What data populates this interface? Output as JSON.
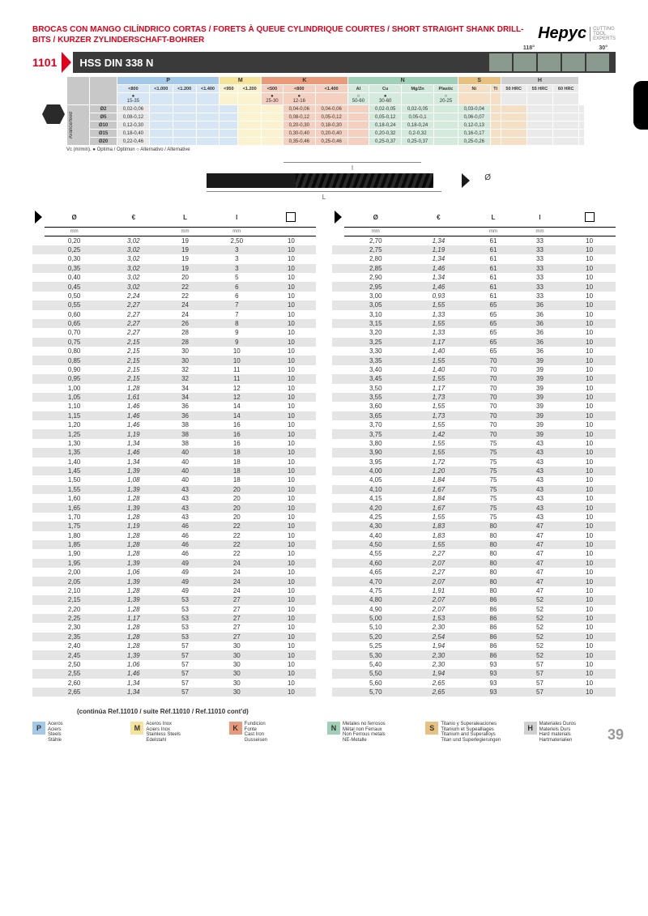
{
  "header_title": "BROCAS CON MANGO CILÍNDRICO CORTAS / FORETS À QUEUE CYLINDRIQUE COURTES / SHORT STRAIGHT SHANK DRILL-BITS / KURZER ZYLINDERSCHAFT-BOHRER",
  "brand_name": "Hepyc",
  "brand_tag": "CUTTING\nTOOL\nEXPERTS",
  "product_code": "1101",
  "product_name": "HSS DIN 338 N",
  "angle1": "118°",
  "angle2": "30°",
  "feed_groups": [
    "P",
    "M",
    "K",
    "N",
    "S",
    "H"
  ],
  "feed_group_colors": {
    "P": "#a4c8e8",
    "M": "#f6e39a",
    "K": "#e89a7a",
    "N": "#a0d0b8",
    "S": "#e8c080",
    "H": "#d0d0d0"
  },
  "feed_sub_P": [
    "<800",
    "<1.000",
    "<1.200",
    "<1.400"
  ],
  "feed_sub_M": [
    "<950",
    "<1.200"
  ],
  "feed_sub_K": [
    "<500",
    "<800",
    "<1.400"
  ],
  "feed_sub_N": [
    "Al",
    "Cu",
    "Mg/Zn",
    "Plastic"
  ],
  "feed_sub_S": [
    "Ni",
    "Ti"
  ],
  "feed_sub_H": [
    "50 HRC",
    "55 HRC",
    "60 HRC"
  ],
  "feed_vc_row": [
    "15-35",
    "",
    "",
    "",
    "",
    "",
    "25-30",
    "12-16",
    "",
    "50-60",
    "30-60",
    "",
    "20-25",
    "",
    "",
    "",
    "",
    ""
  ],
  "feed_side_label": "Avance/feed",
  "feed_rows": [
    {
      "d": "Ø2",
      "av": "0,02-0,06",
      "k": [
        "0,04-0,06",
        "0,04-0,06",
        ""
      ],
      "n": [
        "0,02-0,05",
        "0,02-0,05",
        "",
        "0,03-0,04"
      ]
    },
    {
      "d": "Ø5",
      "av": "0,08-0,12",
      "k": [
        "0,08-0,12",
        "0,05-0,12",
        ""
      ],
      "n": [
        "0,05-0,12",
        "0,05-0,1",
        "",
        "0,06-0,07"
      ]
    },
    {
      "d": "Ø10",
      "av": "0,12-0,30",
      "k": [
        "0,20-0,30",
        "0,18-0,30",
        ""
      ],
      "n": [
        "0,18-0,24",
        "0,18-0,24",
        "",
        "0,12-0,13"
      ]
    },
    {
      "d": "Ø15",
      "av": "0,18-0,40",
      "k": [
        "0,30-0,40",
        "0,20-0,40",
        ""
      ],
      "n": [
        "0,20-0,32",
        "0,2-0,32",
        "",
        "0,16-0,17"
      ]
    },
    {
      "d": "Ø20",
      "av": "0,22-0,46",
      "k": [
        "0,35-0,46",
        "0,25-0,46",
        ""
      ],
      "n": [
        "0,25-0,37",
        "0,25-0,37",
        "",
        "0,25-0,26"
      ]
    }
  ],
  "feed_footnote": "Vc (m/min). ● Optima / Optimun ○ Alternativo / Alternative",
  "diagram_labels": {
    "l": "l",
    "L": "L",
    "d": "Ø"
  },
  "table_headers": {
    "d": "Ø",
    "d_unit": "mm",
    "eur": "€",
    "L": "L",
    "L_unit": "mm",
    "l": "l",
    "l_unit": "mm",
    "pack": ""
  },
  "left_rows": [
    [
      "0,20",
      "3,02",
      "19",
      "2,50",
      "10"
    ],
    [
      "0,25",
      "3,02",
      "19",
      "3",
      "10"
    ],
    [
      "0,30",
      "3,02",
      "19",
      "3",
      "10"
    ],
    [
      "0,35",
      "3,02",
      "19",
      "3",
      "10"
    ],
    [
      "0,40",
      "3,02",
      "20",
      "5",
      "10"
    ],
    [
      "0,45",
      "3,02",
      "22",
      "6",
      "10"
    ],
    [
      "0,50",
      "2,24",
      "22",
      "6",
      "10"
    ],
    [
      "0,55",
      "2,27",
      "24",
      "7",
      "10"
    ],
    [
      "0,60",
      "2,27",
      "24",
      "7",
      "10"
    ],
    [
      "0,65",
      "2,27",
      "26",
      "8",
      "10"
    ],
    [
      "0,70",
      "2,27",
      "28",
      "9",
      "10"
    ],
    [
      "0,75",
      "2,15",
      "28",
      "9",
      "10"
    ],
    [
      "0,80",
      "2,15",
      "30",
      "10",
      "10"
    ],
    [
      "0,85",
      "2,15",
      "30",
      "10",
      "10"
    ],
    [
      "0,90",
      "2,15",
      "32",
      "11",
      "10"
    ],
    [
      "0,95",
      "2,15",
      "32",
      "11",
      "10"
    ],
    [
      "1,00",
      "1,28",
      "34",
      "12",
      "10"
    ],
    [
      "1,05",
      "1,61",
      "34",
      "12",
      "10"
    ],
    [
      "1,10",
      "1,46",
      "36",
      "14",
      "10"
    ],
    [
      "1,15",
      "1,46",
      "36",
      "14",
      "10"
    ],
    [
      "1,20",
      "1,46",
      "38",
      "16",
      "10"
    ],
    [
      "1,25",
      "1,19",
      "38",
      "16",
      "10"
    ],
    [
      "1,30",
      "1,34",
      "38",
      "16",
      "10"
    ],
    [
      "1,35",
      "1,46",
      "40",
      "18",
      "10"
    ],
    [
      "1,40",
      "1,34",
      "40",
      "18",
      "10"
    ],
    [
      "1,45",
      "1,39",
      "40",
      "18",
      "10"
    ],
    [
      "1,50",
      "1,08",
      "40",
      "18",
      "10"
    ],
    [
      "1,55",
      "1,39",
      "43",
      "20",
      "10"
    ],
    [
      "1,60",
      "1,28",
      "43",
      "20",
      "10"
    ],
    [
      "1,65",
      "1,39",
      "43",
      "20",
      "10"
    ],
    [
      "1,70",
      "1,28",
      "43",
      "20",
      "10"
    ],
    [
      "1,75",
      "1,19",
      "46",
      "22",
      "10"
    ],
    [
      "1,80",
      "1,28",
      "46",
      "22",
      "10"
    ],
    [
      "1,85",
      "1,28",
      "46",
      "22",
      "10"
    ],
    [
      "1,90",
      "1,28",
      "46",
      "22",
      "10"
    ],
    [
      "1,95",
      "1,39",
      "49",
      "24",
      "10"
    ],
    [
      "2,00",
      "1,06",
      "49",
      "24",
      "10"
    ],
    [
      "2,05",
      "1,39",
      "49",
      "24",
      "10"
    ],
    [
      "2,10",
      "1,28",
      "49",
      "24",
      "10"
    ],
    [
      "2,15",
      "1,39",
      "53",
      "27",
      "10"
    ],
    [
      "2,20",
      "1,28",
      "53",
      "27",
      "10"
    ],
    [
      "2,25",
      "1,17",
      "53",
      "27",
      "10"
    ],
    [
      "2,30",
      "1,28",
      "53",
      "27",
      "10"
    ],
    [
      "2,35",
      "1,28",
      "53",
      "27",
      "10"
    ],
    [
      "2,40",
      "1,28",
      "57",
      "30",
      "10"
    ],
    [
      "2,45",
      "1,39",
      "57",
      "30",
      "10"
    ],
    [
      "2,50",
      "1,06",
      "57",
      "30",
      "10"
    ],
    [
      "2,55",
      "1,46",
      "57",
      "30",
      "10"
    ],
    [
      "2,60",
      "1,34",
      "57",
      "30",
      "10"
    ],
    [
      "2,65",
      "1,34",
      "57",
      "30",
      "10"
    ]
  ],
  "right_rows": [
    [
      "2,70",
      "1,34",
      "61",
      "33",
      "10"
    ],
    [
      "2,75",
      "1,19",
      "61",
      "33",
      "10"
    ],
    [
      "2,80",
      "1,34",
      "61",
      "33",
      "10"
    ],
    [
      "2,85",
      "1,46",
      "61",
      "33",
      "10"
    ],
    [
      "2,90",
      "1,34",
      "61",
      "33",
      "10"
    ],
    [
      "2,95",
      "1,46",
      "61",
      "33",
      "10"
    ],
    [
      "3,00",
      "0,93",
      "61",
      "33",
      "10"
    ],
    [
      "3,05",
      "1,55",
      "65",
      "36",
      "10"
    ],
    [
      "3,10",
      "1,33",
      "65",
      "36",
      "10"
    ],
    [
      "3,15",
      "1,55",
      "65",
      "36",
      "10"
    ],
    [
      "3,20",
      "1,33",
      "65",
      "36",
      "10"
    ],
    [
      "3,25",
      "1,17",
      "65",
      "36",
      "10"
    ],
    [
      "3,30",
      "1,40",
      "65",
      "36",
      "10"
    ],
    [
      "3,35",
      "1,55",
      "70",
      "39",
      "10"
    ],
    [
      "3,40",
      "1,40",
      "70",
      "39",
      "10"
    ],
    [
      "3,45",
      "1,55",
      "70",
      "39",
      "10"
    ],
    [
      "3,50",
      "1,17",
      "70",
      "39",
      "10"
    ],
    [
      "3,55",
      "1,73",
      "70",
      "39",
      "10"
    ],
    [
      "3,60",
      "1,55",
      "70",
      "39",
      "10"
    ],
    [
      "3,65",
      "1,73",
      "70",
      "39",
      "10"
    ],
    [
      "3,70",
      "1,55",
      "70",
      "39",
      "10"
    ],
    [
      "3,75",
      "1,42",
      "70",
      "39",
      "10"
    ],
    [
      "3,80",
      "1,55",
      "75",
      "43",
      "10"
    ],
    [
      "3,90",
      "1,55",
      "75",
      "43",
      "10"
    ],
    [
      "3,95",
      "1,72",
      "75",
      "43",
      "10"
    ],
    [
      "4,00",
      "1,20",
      "75",
      "43",
      "10"
    ],
    [
      "4,05",
      "1,84",
      "75",
      "43",
      "10"
    ],
    [
      "4,10",
      "1,67",
      "75",
      "43",
      "10"
    ],
    [
      "4,15",
      "1,84",
      "75",
      "43",
      "10"
    ],
    [
      "4,20",
      "1,67",
      "75",
      "43",
      "10"
    ],
    [
      "4,25",
      "1,55",
      "75",
      "43",
      "10"
    ],
    [
      "4,30",
      "1,83",
      "80",
      "47",
      "10"
    ],
    [
      "4,40",
      "1,83",
      "80",
      "47",
      "10"
    ],
    [
      "4,50",
      "1,55",
      "80",
      "47",
      "10"
    ],
    [
      "4,55",
      "2,27",
      "80",
      "47",
      "10"
    ],
    [
      "4,60",
      "2,07",
      "80",
      "47",
      "10"
    ],
    [
      "4,65",
      "2,27",
      "80",
      "47",
      "10"
    ],
    [
      "4,70",
      "2,07",
      "80",
      "47",
      "10"
    ],
    [
      "4,75",
      "1,91",
      "80",
      "47",
      "10"
    ],
    [
      "4,80",
      "2,07",
      "86",
      "52",
      "10"
    ],
    [
      "4,90",
      "2,07",
      "86",
      "52",
      "10"
    ],
    [
      "5,00",
      "1,53",
      "86",
      "52",
      "10"
    ],
    [
      "5,10",
      "2,30",
      "86",
      "52",
      "10"
    ],
    [
      "5,20",
      "2,54",
      "86",
      "52",
      "10"
    ],
    [
      "5,25",
      "1,94",
      "86",
      "52",
      "10"
    ],
    [
      "5,30",
      "2,30",
      "86",
      "52",
      "10"
    ],
    [
      "5,40",
      "2,30",
      "93",
      "57",
      "10"
    ],
    [
      "5,50",
      "1,94",
      "93",
      "57",
      "10"
    ],
    [
      "5,60",
      "2,65",
      "93",
      "57",
      "10"
    ],
    [
      "5,70",
      "2,65",
      "93",
      "57",
      "10"
    ]
  ],
  "continua_text": "(continúa Ref.11010 / suite Réf.11010 / Ref.11010 cont'd)",
  "legend": [
    {
      "k": "P",
      "c": "#a4c8e8",
      "t": "Aceros\nAciers\nSteels\nStähle"
    },
    {
      "k": "M",
      "c": "#f6e39a",
      "t": "Aceros Inox\nAciers Inox\nStainless Steels\nEdelstahl"
    },
    {
      "k": "K",
      "c": "#e89a7a",
      "t": "Fundicion\nFonte\nCast Iron\nGusseisen"
    },
    {
      "k": "N",
      "c": "#a0d0b8",
      "t": "Metales no ferrosos\nMétal non Ferraux\nNon Ferrous metals\nNE-Metalle"
    },
    {
      "k": "S",
      "c": "#e8c080",
      "t": "Titanio y Superaleaciones\nTitanium et Supealliages\nTitanium and Superalloys\nTitan und Superlegierungen"
    },
    {
      "k": "H",
      "c": "#d0d0d0",
      "t": "Materiales Duros\nMateriels Durs\nHard materials\nHartmaterialien"
    }
  ],
  "page_number": "39"
}
